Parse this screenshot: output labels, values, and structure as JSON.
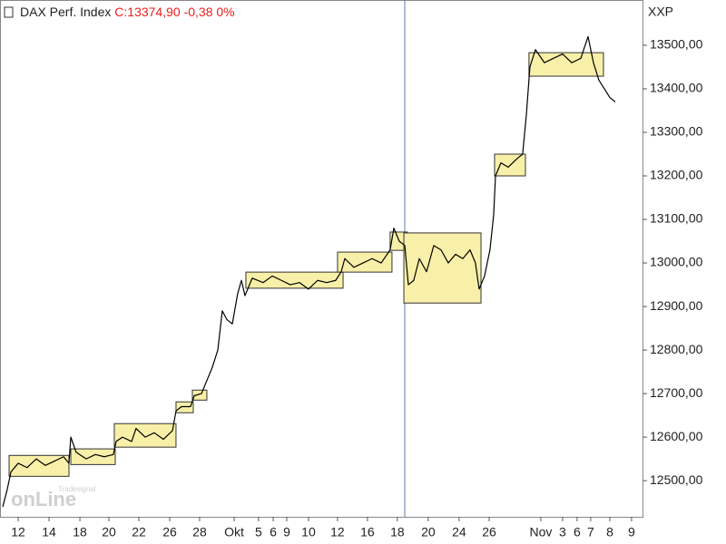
{
  "chart_data": {
    "type": "line",
    "title": "DAX Perf. Index",
    "quote": "C:13374,90 -0,38 0%",
    "unit": "XXP",
    "watermark": {
      "brand": "onLine",
      "vendor": "Tradesignal"
    },
    "color": "#000000",
    "range_color": "#f8f0a8",
    "x": [
      0.18,
      0.47,
      0.71,
      1.18,
      1.76,
      2.35,
      2.94,
      3.53,
      4.12,
      4.47,
      4.59,
      4.94,
      5.59,
      6.18,
      6.76,
      7.35,
      7.53,
      7.94,
      8.53,
      8.82,
      9.41,
      10,
      10.59,
      11.18,
      11.41,
      11.76,
      12.35,
      12.59,
      13.06,
      13.41,
      13.76,
      14.12,
      14.41,
      14.71,
      15.06,
      15.41,
      15.65,
      15.88,
      16.35,
      17.06,
      17.65,
      18.24,
      18.82,
      19.41,
      20,
      20.59,
      21.18,
      21.76,
      22.12,
      22.35,
      22.94,
      23.53,
      24.12,
      24.71,
      25.29,
      25.53,
      25.88,
      26.24,
      26.47,
      26.82,
      27.18,
      27.65,
      28.12,
      28.59,
      29.06,
      29.53,
      30,
      30.47,
      30.82,
      31.06,
      31.41,
      31.76,
      32,
      32.12,
      32.47,
      32.94,
      33.53,
      33.88,
      34.12,
      34.35,
      34.71,
      35.29,
      35.88,
      36.47,
      37.06,
      37.65,
      38.12,
      38.47,
      38.82,
      39.18,
      39.53,
      39.88
    ],
    "values": [
      12440,
      12480,
      12520,
      12540,
      12530,
      12550,
      12535,
      12545,
      12555,
      12540,
      12600,
      12565,
      12550,
      12560,
      12555,
      12560,
      12590,
      12600,
      12590,
      12620,
      12600,
      12610,
      12595,
      12615,
      12660,
      12670,
      12670,
      12695,
      12700,
      12730,
      12760,
      12800,
      12890,
      12870,
      12860,
      12930,
      12960,
      12925,
      12965,
      12955,
      12970,
      12960,
      12950,
      12955,
      12940,
      12960,
      12955,
      12960,
      12980,
      13010,
      12990,
      13000,
      13010,
      13000,
      13030,
      13080,
      13050,
      13040,
      12950,
      12960,
      13010,
      12980,
      13040,
      13030,
      13000,
      13020,
      13010,
      13030,
      13000,
      12940,
      12970,
      13030,
      13110,
      13200,
      13230,
      13220,
      13240,
      13250,
      13340,
      13450,
      13490,
      13460,
      13470,
      13480,
      13460,
      13470,
      13520,
      13460,
      13420,
      13400,
      13380,
      13370
    ],
    "ranges": [
      {
        "x": [
          0.59,
          4.47
        ],
        "y": [
          12510,
          12558
        ]
      },
      {
        "x": [
          4.59,
          7.47
        ],
        "y": [
          12537,
          12573
        ]
      },
      {
        "x": [
          7.41,
          11.41
        ],
        "y": [
          12577,
          12631
        ]
      },
      {
        "x": [
          11.41,
          12.53
        ],
        "y": [
          12656,
          12681
        ]
      },
      {
        "x": [
          12.47,
          13.41
        ],
        "y": [
          12685,
          12708
        ]
      },
      {
        "x": [
          15.94,
          22.24
        ],
        "y": [
          12942,
          12979
        ]
      },
      {
        "x": [
          21.88,
          25.41
        ],
        "y": [
          12979,
          13025
        ]
      },
      {
        "x": [
          25.29,
          26.41
        ],
        "y": [
          13029,
          13071
        ]
      },
      {
        "x": [
          26.18,
          31.18
        ],
        "y": [
          12908,
          13069
        ]
      },
      {
        "x": [
          32.06,
          34.06
        ],
        "y": [
          13200,
          13250
        ]
      },
      {
        "x": [
          34.29,
          39.12
        ],
        "y": [
          13429,
          13483
        ]
      }
    ],
    "xlim": [
      0,
      41.65
    ],
    "ylim": [
      12417,
      13604
    ],
    "xticks": [
      {
        "value": 1.18,
        "label": "12"
      },
      {
        "value": 3.18,
        "label": "14"
      },
      {
        "value": 5.18,
        "label": "18"
      },
      {
        "value": 7.06,
        "label": "20"
      },
      {
        "value": 9,
        "label": "22"
      },
      {
        "value": 11,
        "label": "26"
      },
      {
        "value": 12.94,
        "label": "28"
      },
      {
        "value": 15.18,
        "label": "Okt"
      },
      {
        "value": 16.76,
        "label": "5"
      },
      {
        "value": 17.71,
        "label": "6"
      },
      {
        "value": 18.59,
        "label": "9"
      },
      {
        "value": 20,
        "label": "10"
      },
      {
        "value": 21.88,
        "label": "12"
      },
      {
        "value": 23.82,
        "label": "16"
      },
      {
        "value": 25.76,
        "label": "18"
      },
      {
        "value": 27.76,
        "label": "20"
      },
      {
        "value": 29.76,
        "label": "24"
      },
      {
        "value": 31.71,
        "label": "26"
      },
      {
        "value": 35.06,
        "label": "Nov"
      },
      {
        "value": 36.47,
        "label": "3"
      },
      {
        "value": 37.41,
        "label": "6"
      },
      {
        "value": 38.29,
        "label": "7"
      },
      {
        "value": 39.53,
        "label": "8"
      },
      {
        "value": 40.94,
        "label": "9"
      }
    ],
    "yticks": [
      {
        "value": 12500,
        "label": "12500,00"
      },
      {
        "value": 12600,
        "label": "12600,00"
      },
      {
        "value": 12700,
        "label": "12700,00"
      },
      {
        "value": 12800,
        "label": "12800,00"
      },
      {
        "value": 12900,
        "label": "12900,00"
      },
      {
        "value": 13000,
        "label": "13000,00"
      },
      {
        "value": 13100,
        "label": "13100,00"
      },
      {
        "value": 13200,
        "label": "13200,00"
      },
      {
        "value": 13300,
        "label": "13300,00"
      },
      {
        "value": 13400,
        "label": "13400,00"
      },
      {
        "value": 13500,
        "label": "13500,00"
      }
    ],
    "grid": false
  }
}
